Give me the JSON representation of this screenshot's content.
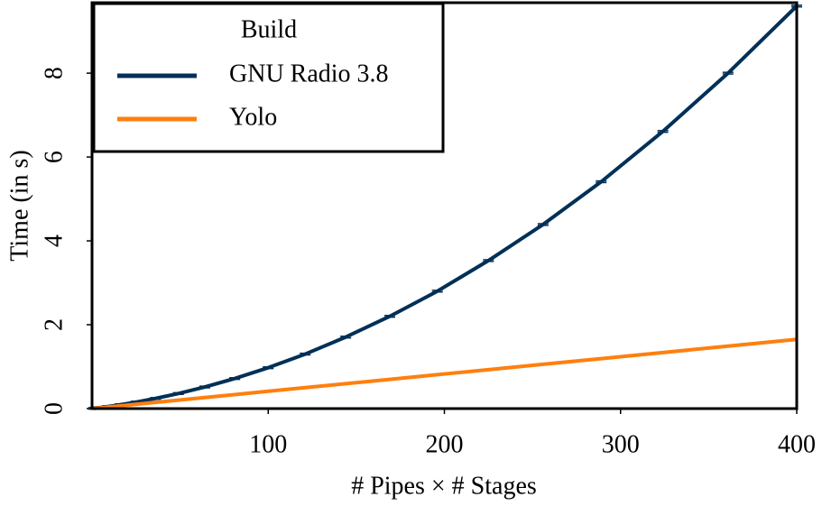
{
  "chart_data": {
    "type": "line",
    "x_label": "# Pipes × # Stages",
    "y_label": "Time (in s)",
    "legend_title": "Build",
    "legend_position": "upper left",
    "x": [
      1,
      4,
      9,
      16,
      25,
      36,
      49,
      64,
      81,
      100,
      121,
      144,
      169,
      196,
      225,
      256,
      289,
      324,
      361,
      400
    ],
    "series": [
      {
        "name": "GNU Radio 3.8",
        "color": "#003057",
        "values": [
          0.005,
          0.021,
          0.049,
          0.092,
          0.155,
          0.242,
          0.359,
          0.515,
          0.717,
          0.975,
          1.3,
          1.705,
          2.2,
          2.8,
          3.53,
          4.39,
          5.41,
          6.61,
          8.0,
          9.6
        ],
        "errors": [
          0.02,
          0.02,
          0.02,
          0.02,
          0.02,
          0.02,
          0.02,
          0.02,
          0.02,
          0.02,
          0.02,
          0.02,
          0.02,
          0.02,
          0.02,
          0.02,
          0.02,
          0.02,
          0.02,
          0.02
        ]
      },
      {
        "name": "Yolo",
        "color": "#ff7f0e",
        "values": [
          0.004,
          0.017,
          0.037,
          0.066,
          0.103,
          0.149,
          0.202,
          0.264,
          0.334,
          0.413,
          0.499,
          0.594,
          0.697,
          0.809,
          0.928,
          1.056,
          1.192,
          1.337,
          1.489,
          1.65
        ]
      }
    ],
    "xlim": [
      0,
      400
    ],
    "xticks": [
      100,
      200,
      300,
      400
    ],
    "ylim": [
      0,
      9.68
    ],
    "yticks": [
      0,
      2,
      4,
      6,
      8
    ],
    "grid": false
  }
}
